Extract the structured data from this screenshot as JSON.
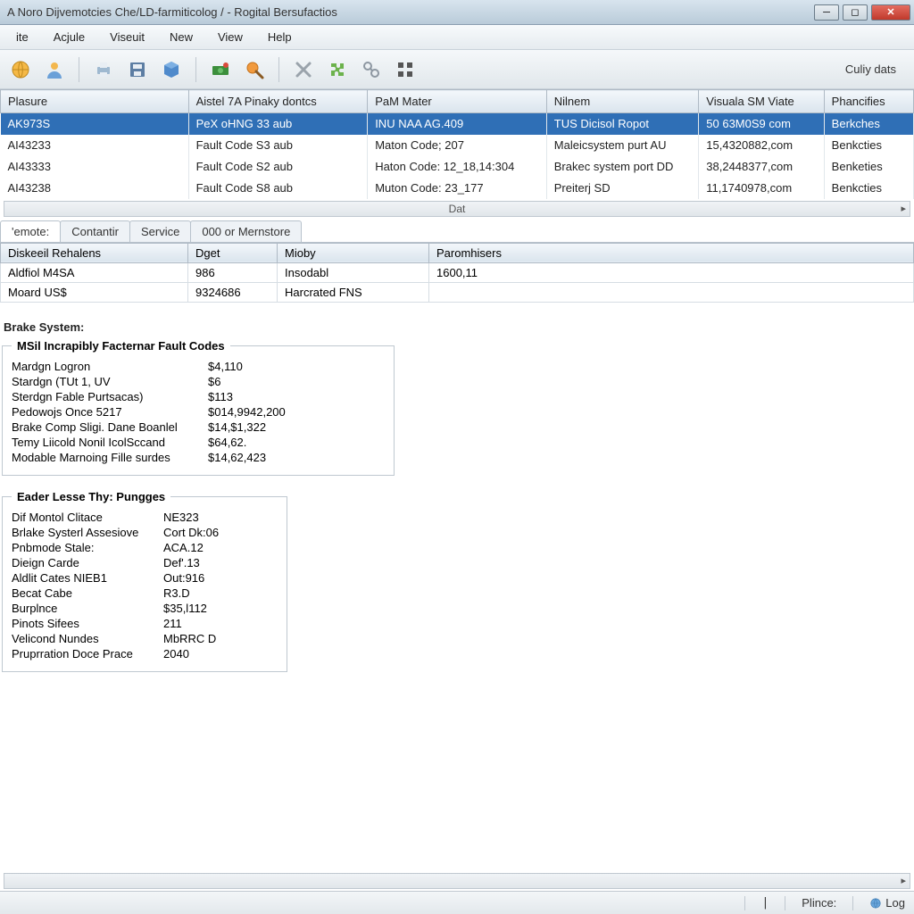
{
  "window": {
    "title": "A Noro Dijvemotcies Che/LD-farmiticolog / - Rogital Bersufactios"
  },
  "menu": [
    "ite",
    "Acjule",
    "Viseuit",
    "New",
    "View",
    "Help"
  ],
  "toolbar_right": "Culiy dats",
  "grid": {
    "columns": [
      "Plasure",
      "Aistel 7A Pinaky dontcs",
      "PaM Mater",
      "Nilnem",
      "Visuala SM Viate",
      "Phancifies"
    ],
    "col_widths": [
      "210px",
      "200px",
      "200px",
      "170px",
      "140px",
      "100px"
    ],
    "rows": [
      {
        "sel": true,
        "cells": [
          "AK973S",
          "PeX oHNG 33 aub",
          "INU NAA AG.409",
          "TUS Dicisol Ropot",
          "50 63M0S9 com",
          "Berkches"
        ]
      },
      {
        "sel": false,
        "cells": [
          "AI43233",
          "Fault Code S3 aub",
          "Maton Code; 207",
          "Maleicsystem purt AU",
          "15,4320882,com",
          "Benkcties"
        ]
      },
      {
        "sel": false,
        "cells": [
          "AI43333",
          "Fault Code S2 aub",
          "Haton Code: 12_18,14:304",
          "Brakec system port DD",
          "38,2448377,com",
          "Benketies"
        ]
      },
      {
        "sel": false,
        "cells": [
          "AI43238",
          "Fault Code S8 aub",
          "Muton Code: 23_177",
          "Preiterj SD",
          "11,1740978,com",
          "Benkcties"
        ]
      }
    ]
  },
  "scroll_label": "Dat",
  "tabs": [
    "'emote:",
    "Contantir",
    "Service",
    "000 or Mernstore"
  ],
  "detail": {
    "columns": [
      "Diskeeil Rehalens",
      "Dget",
      "Mioby",
      "Paromhisers"
    ],
    "col_widths": [
      "210px",
      "100px",
      "170px",
      "auto"
    ],
    "rows": [
      [
        "Aldfiol M4SA",
        "986",
        "Insodabl",
        "1600,11"
      ],
      [
        "Moard US$",
        "9324686",
        "Harcrated FNS",
        ""
      ]
    ]
  },
  "brake_title": "Brake System:",
  "fault_codes": {
    "legend": "MSil Incrapibly Facternar Fault Codes",
    "rows": [
      [
        "Mardgn Logron",
        "$4,110"
      ],
      [
        "Stardgn (TUt 1, UV",
        "$6"
      ],
      [
        "Sterdgn Fable Purtsacas)",
        "$113"
      ],
      [
        "Pedowojs Once 5217",
        "$014,9942,200"
      ],
      [
        "Brake Comp Sligi. Dane Boanlel",
        "$14,$1,322"
      ],
      [
        "Temy Liicold Nonil IcolSccand",
        "$64,62."
      ],
      [
        "Modable Marnoing Fille surdes",
        "$14,62,423"
      ]
    ]
  },
  "eader": {
    "legend": "Eader Lesse Thy: Pungges",
    "rows": [
      [
        "Dif Montol Clitace",
        "NE323"
      ],
      [
        "Brlake Systerl Assesiove",
        "Cort Dk:06"
      ],
      [
        "Pnbmode Stale:",
        "ACA.12"
      ],
      [
        "Dieign Carde",
        "Def'.13"
      ],
      [
        "Aldlit Cates NIEB1",
        "Out:916"
      ],
      [
        "Becat Cabe",
        "R3.D"
      ],
      [
        "Burplnce",
        "$35,l112"
      ],
      [
        "Pinots Sifees",
        "211"
      ],
      [
        "Velicond Nundes",
        "MbRRC D"
      ],
      [
        "Pruprration Doce Prace",
        "2040"
      ]
    ]
  },
  "status": {
    "left": "Plince:",
    "right": "Log"
  },
  "colors": {
    "selection": "#2f6fb6",
    "header_grad_top": "#f3f7fb",
    "header_grad_bot": "#dae4ed",
    "border": "#aeb9c4"
  }
}
